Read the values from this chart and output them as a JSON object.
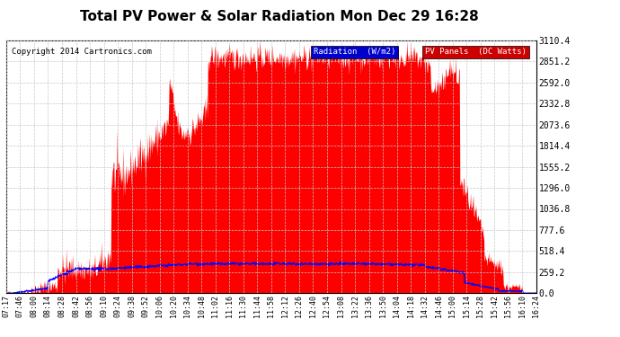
{
  "title": "Total PV Power & Solar Radiation Mon Dec 29 16:28",
  "copyright": "Copyright 2014 Cartronics.com",
  "y_ticks": [
    0.0,
    259.2,
    518.4,
    777.6,
    1036.8,
    1296.0,
    1555.2,
    1814.4,
    2073.6,
    2332.8,
    2592.0,
    2851.2,
    3110.4
  ],
  "x_tick_labels": [
    "07:17",
    "07:46",
    "08:00",
    "08:14",
    "08:28",
    "08:42",
    "08:56",
    "09:10",
    "09:24",
    "09:38",
    "09:52",
    "10:06",
    "10:20",
    "10:34",
    "10:48",
    "11:02",
    "11:16",
    "11:30",
    "11:44",
    "11:58",
    "12:12",
    "12:26",
    "12:40",
    "12:54",
    "13:08",
    "13:22",
    "13:36",
    "13:50",
    "14:04",
    "14:18",
    "14:32",
    "14:46",
    "15:00",
    "15:14",
    "15:28",
    "15:42",
    "15:56",
    "16:10",
    "16:24"
  ],
  "background_color": "#ffffff",
  "plot_background": "#ffffff",
  "grid_color": "#c8c8c8",
  "fill_color": "#ff0000",
  "line_color": "#0000ff",
  "title_fontsize": 11,
  "legend_radiation_label": "Radiation  (W/m2)",
  "legend_pv_label": "PV Panels  (DC Watts)",
  "legend_radiation_bg": "#0000cc",
  "legend_pv_bg": "#cc0000",
  "ymax": 3110.4,
  "ymin": 0.0
}
